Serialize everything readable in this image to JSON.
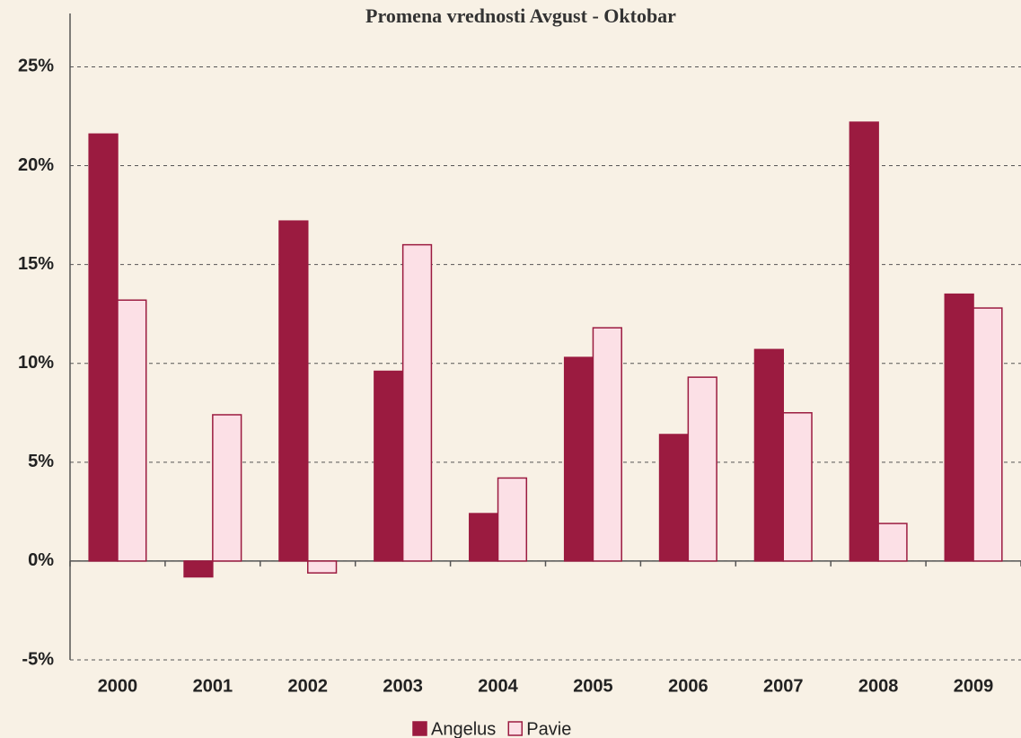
{
  "chart_data": {
    "type": "bar",
    "title": "Promena vrednosti Avgust - Oktobar",
    "categories": [
      "2000",
      "2001",
      "2002",
      "2003",
      "2004",
      "2005",
      "2006",
      "2007",
      "2008",
      "2009"
    ],
    "series": [
      {
        "name": "Angelus",
        "color": "#9b1b40",
        "edgecolor": "#9b1b40",
        "values": [
          21.6,
          -0.8,
          17.2,
          9.6,
          2.4,
          10.3,
          6.4,
          10.7,
          22.2,
          13.5
        ]
      },
      {
        "name": "Pavie",
        "color": "#fce0e6",
        "edgecolor": "#9b1b40",
        "values": [
          13.2,
          7.4,
          -0.6,
          16.0,
          4.2,
          11.8,
          9.3,
          7.5,
          1.9,
          12.8
        ]
      }
    ],
    "ylim": [
      -5,
      27.7
    ],
    "yticks": [
      {
        "value": -5,
        "label": "-5%"
      },
      {
        "value": 0,
        "label": "0%"
      },
      {
        "value": 5,
        "label": "5%"
      },
      {
        "value": 10,
        "label": "10%"
      },
      {
        "value": 15,
        "label": "15%"
      },
      {
        "value": 20,
        "label": "20%"
      },
      {
        "value": 25,
        "label": "25%"
      }
    ],
    "grid": true,
    "legend": "bottom"
  }
}
